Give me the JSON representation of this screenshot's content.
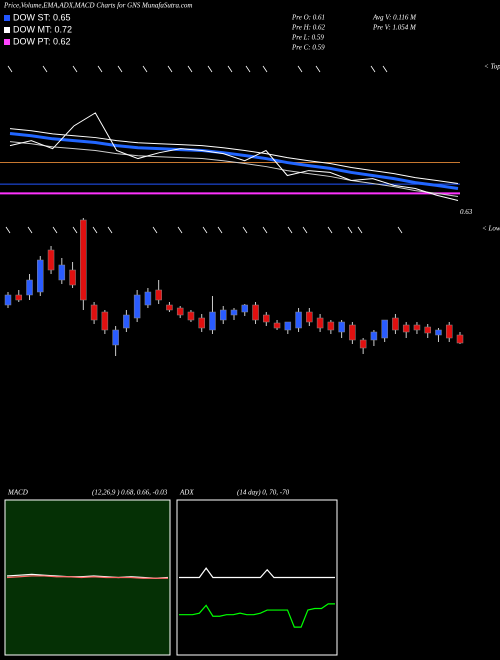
{
  "header": {
    "title": "Price,Volume,EMA,ADX,MACD Charts for GNS MunafaSutra.com",
    "dow": [
      {
        "label": "DOW ST: 0.65",
        "color": "#2255ff"
      },
      {
        "label": "DOW MT: 0.72",
        "color": "#ffffff"
      },
      {
        "label": "DOW PT: 0.62",
        "color": "#ff44ff"
      }
    ],
    "stats": [
      "Pre  O: 0.61",
      "Pre  H: 0.62",
      "Pre  L: 0.59",
      "Pre  C: 0.59"
    ],
    "volume": [
      "Avg V: 0.116  M",
      "Pre  V: 1.054  M"
    ],
    "tops": "< Tops",
    "lows": "< Lowes"
  },
  "chart_data": [
    {
      "type": "line",
      "ylim": [
        0.55,
        1.02
      ],
      "last_price": 0.63,
      "levels": [
        {
          "value": 0.65,
          "color": "#2255ff"
        },
        {
          "value": 0.72,
          "color": "#c87830"
        },
        {
          "value": 0.62,
          "color": "#ff33ff"
        }
      ],
      "series": [
        {
          "color": "#ffffff",
          "width": 1,
          "values": [
            0.83,
            0.823,
            0.813,
            0.807,
            0.801,
            0.791,
            0.784,
            0.781,
            0.778,
            0.775,
            0.768,
            0.759,
            0.749,
            0.736,
            0.726,
            0.717,
            0.704,
            0.694,
            0.684,
            0.671,
            0.662,
            0.652
          ]
        },
        {
          "color": "#2266ff",
          "width": 3,
          "values": [
            0.814,
            0.807,
            0.797,
            0.791,
            0.785,
            0.775,
            0.768,
            0.765,
            0.762,
            0.759,
            0.752,
            0.743,
            0.733,
            0.72,
            0.71,
            0.701,
            0.688,
            0.678,
            0.668,
            0.655,
            0.646,
            0.636
          ]
        },
        {
          "color": "#cccccc",
          "width": 1,
          "values": [
            0.788,
            0.781,
            0.771,
            0.765,
            0.759,
            0.749,
            0.742,
            0.739,
            0.736,
            0.733,
            0.726,
            0.717,
            0.707,
            0.694,
            0.684,
            0.675,
            0.662,
            0.652,
            0.642,
            0.629,
            0.62,
            0.61
          ]
        },
        {
          "color": "#ffffff",
          "width": 1,
          "values": [
            0.775,
            0.791,
            0.765,
            0.839,
            0.881,
            0.759,
            0.733,
            0.752,
            0.765,
            0.759,
            0.749,
            0.726,
            0.759,
            0.678,
            0.694,
            0.688,
            0.662,
            0.668,
            0.646,
            0.636,
            0.614,
            0.597
          ]
        }
      ]
    },
    {
      "type": "candlestick",
      "ylim": [
        0,
        1
      ],
      "up_color": "#2a5cff",
      "down_color": "#e01010",
      "open": [
        0.475,
        0.525,
        0.525,
        0.54,
        0.75,
        0.6,
        0.65,
        0.9,
        0.475,
        0.44,
        0.275,
        0.36,
        0.41,
        0.475,
        0.55,
        0.475,
        0.46,
        0.44,
        0.41,
        0.35,
        0.4,
        0.425,
        0.44,
        0.475,
        0.425,
        0.385,
        0.35,
        0.36,
        0.44,
        0.41,
        0.39,
        0.34,
        0.375,
        0.3,
        0.3,
        0.31,
        0.41,
        0.375,
        0.375,
        0.365,
        0.325,
        0.375,
        0.325
      ],
      "high": [
        0.54,
        0.55,
        0.63,
        0.72,
        0.77,
        0.71,
        0.69,
        0.91,
        0.49,
        0.45,
        0.37,
        0.45,
        0.55,
        0.56,
        0.6,
        0.49,
        0.47,
        0.45,
        0.43,
        0.52,
        0.47,
        0.46,
        0.48,
        0.49,
        0.44,
        0.4,
        0.39,
        0.46,
        0.46,
        0.43,
        0.4,
        0.4,
        0.39,
        0.31,
        0.35,
        0.4,
        0.43,
        0.39,
        0.39,
        0.38,
        0.36,
        0.39,
        0.34
      ],
      "low": [
        0.46,
        0.49,
        0.5,
        0.52,
        0.63,
        0.58,
        0.56,
        0.45,
        0.38,
        0.33,
        0.22,
        0.34,
        0.39,
        0.46,
        0.48,
        0.44,
        0.41,
        0.39,
        0.34,
        0.33,
        0.38,
        0.4,
        0.42,
        0.38,
        0.37,
        0.35,
        0.33,
        0.34,
        0.37,
        0.34,
        0.33,
        0.31,
        0.28,
        0.23,
        0.27,
        0.29,
        0.33,
        0.31,
        0.33,
        0.31,
        0.29,
        0.29,
        0.28
      ],
      "close": [
        0.525,
        0.5,
        0.6,
        0.7,
        0.65,
        0.675,
        0.575,
        0.5,
        0.4,
        0.35,
        0.35,
        0.425,
        0.525,
        0.54,
        0.5,
        0.45,
        0.425,
        0.4,
        0.36,
        0.44,
        0.45,
        0.45,
        0.475,
        0.4,
        0.39,
        0.36,
        0.39,
        0.44,
        0.39,
        0.36,
        0.35,
        0.39,
        0.3,
        0.26,
        0.34,
        0.4,
        0.35,
        0.34,
        0.35,
        0.335,
        0.35,
        0.31,
        0.285
      ]
    },
    {
      "type": "line",
      "title": "MACD",
      "params": "(12,26,9 ) 0.68, 0.66, -0.03",
      "ylim": [
        -1,
        1
      ],
      "background": "#053005",
      "series": [
        {
          "color": "#ffffff",
          "values": [
            0.02,
            0.03,
            0.04,
            0.03,
            0.02,
            0.01,
            0.01,
            0.02,
            0.01,
            0.0,
            0.01,
            0.0,
            -0.01,
            0.0
          ]
        },
        {
          "color": "#ff6666",
          "values": [
            0.0,
            0.01,
            0.02,
            0.02,
            0.01,
            0.01,
            0.0,
            0.01,
            0.0,
            0.0,
            0.0,
            -0.01,
            -0.01,
            -0.01
          ]
        }
      ]
    },
    {
      "type": "line",
      "title": "ADX",
      "params": "(14  day) 0, 70, -70",
      "ylim": [
        0,
        100
      ],
      "background": "#000000",
      "series": [
        {
          "color": "#ffffff",
          "values": [
            50,
            50,
            50,
            50,
            56,
            50,
            50,
            50,
            50,
            50,
            50,
            50,
            50,
            55,
            50,
            50,
            50,
            50,
            50,
            50,
            50,
            50,
            50,
            50
          ]
        },
        {
          "color": "#00ff00",
          "values": [
            26,
            26,
            26,
            27,
            32,
            25,
            25,
            26,
            26,
            27,
            26,
            26,
            27,
            29,
            29,
            29,
            29,
            18,
            18,
            29,
            30,
            30,
            33,
            33
          ]
        }
      ]
    }
  ]
}
